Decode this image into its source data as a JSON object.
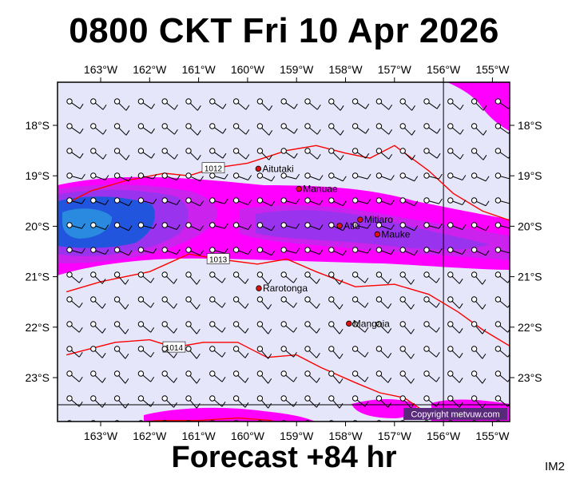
{
  "title": "0800 CKT Fri 10 Apr 2026",
  "footer": "Forecast +84 hr",
  "image_id": "IM2",
  "copyright": "Copyright metvuw.com",
  "colors": {
    "ocean": "#e6e6fa",
    "rain_light": "#ff00ff",
    "rain_moderate": "#cc22ee",
    "rain_heavy": "#9933ee",
    "rain_very_heavy": "#2255dd",
    "rain_extreme": "#2a8adf",
    "isobar": "#ff0000",
    "town": "#dd1111"
  },
  "longitude_labels": [
    "163°W",
    "162°W",
    "161°W",
    "160°W",
    "159°W",
    "158°W",
    "157°W",
    "156°W",
    "155°W"
  ],
  "longitudes": [
    -163,
    -162,
    -161,
    -160,
    -159,
    -158,
    -157,
    -156,
    -155
  ],
  "latitude_labels": [
    "18°S",
    "19°S",
    "20°S",
    "21°S",
    "22°S",
    "23°S"
  ],
  "latitudes": [
    -18,
    -19,
    -20,
    -21,
    -22,
    -23
  ],
  "places": [
    {
      "name": "Aitutaki",
      "lon": -159.78,
      "lat": -18.86
    },
    {
      "name": "Manuae",
      "lon": -158.95,
      "lat": -19.26
    },
    {
      "name": "Mitiaro",
      "lon": -157.7,
      "lat": -19.87
    },
    {
      "name": "Atiu",
      "lon": -158.12,
      "lat": -19.99
    },
    {
      "name": "Mauke",
      "lon": -157.35,
      "lat": -20.16
    },
    {
      "name": "Rarotonga",
      "lon": -159.77,
      "lat": -21.23
    },
    {
      "name": "Mangaia",
      "lon": -157.93,
      "lat": -21.93
    }
  ],
  "isobars": [
    {
      "label": "1012",
      "points": [
        [
          -163.7,
          -19.55
        ],
        [
          -163.2,
          -19.3
        ],
        [
          -162.5,
          -19.1
        ],
        [
          -161.7,
          -18.95
        ],
        [
          -161.2,
          -19.0
        ],
        [
          -160.7,
          -18.85
        ],
        [
          -160.0,
          -18.75
        ],
        [
          -159.2,
          -18.5
        ],
        [
          -158.6,
          -18.4
        ],
        [
          -158.0,
          -18.55
        ],
        [
          -157.5,
          -18.65
        ],
        [
          -157.0,
          -18.4
        ],
        [
          -156.3,
          -18.9
        ],
        [
          -155.8,
          -19.35
        ],
        [
          -155.2,
          -19.7
        ],
        [
          -154.6,
          -19.9
        ]
      ]
    },
    {
      "label": "1013",
      "points": [
        [
          -163.7,
          -21.3
        ],
        [
          -163.0,
          -21.1
        ],
        [
          -162.5,
          -21.0
        ],
        [
          -162.0,
          -20.9
        ],
        [
          -161.2,
          -20.55
        ],
        [
          -160.6,
          -20.65
        ],
        [
          -159.8,
          -20.75
        ],
        [
          -159.2,
          -20.65
        ],
        [
          -158.6,
          -20.9
        ],
        [
          -157.8,
          -21.2
        ],
        [
          -157.0,
          -21.15
        ],
        [
          -156.3,
          -21.35
        ],
        [
          -155.7,
          -21.7
        ],
        [
          -155.2,
          -22.05
        ],
        [
          -154.6,
          -22.4
        ]
      ]
    },
    {
      "label": "1014",
      "points": [
        [
          -163.7,
          -22.55
        ],
        [
          -163.1,
          -22.4
        ],
        [
          -162.7,
          -22.3
        ],
        [
          -162.0,
          -22.25
        ],
        [
          -161.5,
          -22.4
        ],
        [
          -160.9,
          -22.3
        ],
        [
          -160.2,
          -22.3
        ],
        [
          -159.6,
          -22.6
        ],
        [
          -159.0,
          -22.55
        ],
        [
          -158.5,
          -22.8
        ],
        [
          -157.8,
          -23.1
        ],
        [
          -157.3,
          -23.3
        ],
        [
          -156.8,
          -23.4
        ],
        [
          -156.2,
          -23.8
        ]
      ]
    },
    {
      "label": "",
      "points": [
        [
          -162.5,
          -23.9
        ],
        [
          -161.8,
          -23.85
        ],
        [
          -161.0,
          -23.85
        ],
        [
          -160.2,
          -23.8
        ],
        [
          -159.5,
          -23.85
        ]
      ]
    }
  ]
}
